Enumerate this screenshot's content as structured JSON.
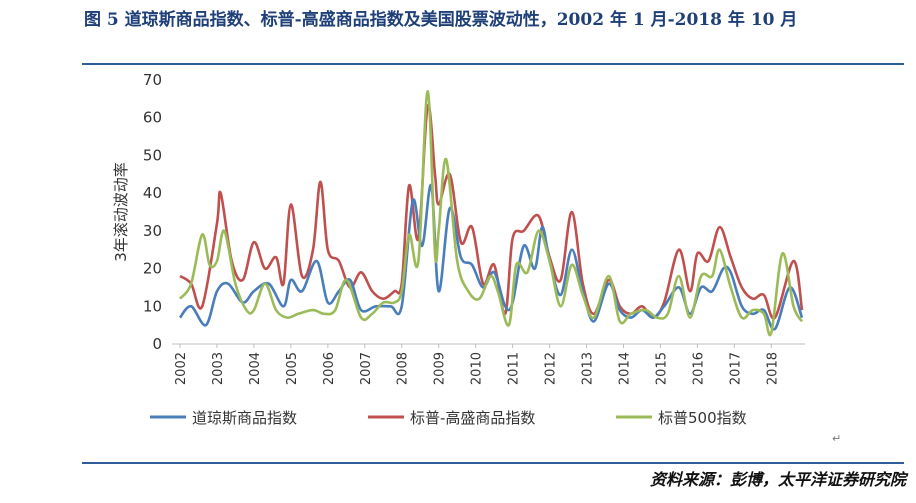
{
  "title": "图 5 道琼斯商品指数、标普-高盛商品指数及美国股票波动性，2002 年 1 月-2018 年 10 月",
  "source": "资料来源：彭博，太平洋证券研究院",
  "chart_data": {
    "type": "line",
    "ylabel": "3年滚动波动率",
    "xlabel": "",
    "ylim": [
      0,
      70
    ],
    "yticks": [
      0,
      10,
      20,
      30,
      40,
      50,
      60,
      70
    ],
    "xlim": [
      2002,
      2018.83
    ],
    "xticks": [
      "2002",
      "2003",
      "2004",
      "2005",
      "2006",
      "2007",
      "2008",
      "2009",
      "2010",
      "2011",
      "2012",
      "2013",
      "2014",
      "2015",
      "2016",
      "2017",
      "2018"
    ],
    "grid": false,
    "legend": "bottom",
    "series": [
      {
        "name": "道琼斯商品指数",
        "color": "#4a7ebb",
        "points": [
          [
            2002,
            7
          ],
          [
            2002.3,
            10
          ],
          [
            2002.7,
            5
          ],
          [
            2003.0,
            14
          ],
          [
            2003.3,
            16
          ],
          [
            2003.7,
            11
          ],
          [
            2004.0,
            14
          ],
          [
            2004.4,
            16
          ],
          [
            2004.8,
            10
          ],
          [
            2005.0,
            17
          ],
          [
            2005.3,
            14
          ],
          [
            2005.7,
            22
          ],
          [
            2006.0,
            11
          ],
          [
            2006.3,
            14
          ],
          [
            2006.6,
            17
          ],
          [
            2006.9,
            9
          ],
          [
            2007.3,
            10
          ],
          [
            2007.7,
            10
          ],
          [
            2008.0,
            10
          ],
          [
            2008.3,
            38
          ],
          [
            2008.55,
            26
          ],
          [
            2008.8,
            42
          ],
          [
            2009.0,
            14
          ],
          [
            2009.3,
            36
          ],
          [
            2009.6,
            23
          ],
          [
            2009.9,
            21
          ],
          [
            2010.2,
            15
          ],
          [
            2010.5,
            19
          ],
          [
            2010.8,
            10
          ],
          [
            2011.0,
            11
          ],
          [
            2011.3,
            26
          ],
          [
            2011.6,
            20
          ],
          [
            2011.8,
            31
          ],
          [
            2012.0,
            22
          ],
          [
            2012.3,
            13
          ],
          [
            2012.6,
            25
          ],
          [
            2012.9,
            14
          ],
          [
            2013.2,
            6
          ],
          [
            2013.6,
            16
          ],
          [
            2013.9,
            9
          ],
          [
            2014.2,
            7
          ],
          [
            2014.5,
            9
          ],
          [
            2014.8,
            7
          ],
          [
            2015.1,
            10
          ],
          [
            2015.5,
            15
          ],
          [
            2015.8,
            8
          ],
          [
            2016.1,
            15
          ],
          [
            2016.4,
            14
          ],
          [
            2016.7,
            20
          ],
          [
            2016.9,
            19
          ],
          [
            2017.2,
            10
          ],
          [
            2017.5,
            8
          ],
          [
            2017.8,
            9
          ],
          [
            2018.1,
            4
          ],
          [
            2018.5,
            15
          ],
          [
            2018.83,
            7
          ]
        ]
      },
      {
        "name": "标普-高盛商品指数",
        "color": "#c0504d",
        "points": [
          [
            2002,
            18
          ],
          [
            2002.3,
            16
          ],
          [
            2002.6,
            10
          ],
          [
            2003.0,
            32
          ],
          [
            2003.1,
            40
          ],
          [
            2003.4,
            22
          ],
          [
            2003.7,
            17
          ],
          [
            2004.0,
            27
          ],
          [
            2004.3,
            20
          ],
          [
            2004.6,
            23
          ],
          [
            2004.8,
            16
          ],
          [
            2005.0,
            37
          ],
          [
            2005.3,
            18
          ],
          [
            2005.6,
            25
          ],
          [
            2005.8,
            43
          ],
          [
            2006.0,
            25
          ],
          [
            2006.3,
            22
          ],
          [
            2006.6,
            15
          ],
          [
            2006.9,
            19
          ],
          [
            2007.2,
            14
          ],
          [
            2007.5,
            12
          ],
          [
            2007.8,
            14
          ],
          [
            2008.0,
            16
          ],
          [
            2008.2,
            42
          ],
          [
            2008.45,
            28
          ],
          [
            2008.7,
            63
          ],
          [
            2008.9,
            45
          ],
          [
            2009.0,
            37
          ],
          [
            2009.3,
            45
          ],
          [
            2009.6,
            27
          ],
          [
            2009.9,
            31
          ],
          [
            2010.2,
            16
          ],
          [
            2010.5,
            21
          ],
          [
            2010.8,
            8
          ],
          [
            2011.0,
            28
          ],
          [
            2011.3,
            30
          ],
          [
            2011.7,
            34
          ],
          [
            2012.0,
            23
          ],
          [
            2012.3,
            17
          ],
          [
            2012.6,
            35
          ],
          [
            2012.9,
            16
          ],
          [
            2013.2,
            8
          ],
          [
            2013.6,
            17
          ],
          [
            2013.9,
            10
          ],
          [
            2014.2,
            8
          ],
          [
            2014.5,
            10
          ],
          [
            2014.8,
            7
          ],
          [
            2015.1,
            11
          ],
          [
            2015.5,
            25
          ],
          [
            2015.8,
            14
          ],
          [
            2016.0,
            24
          ],
          [
            2016.3,
            22
          ],
          [
            2016.6,
            31
          ],
          [
            2016.9,
            23
          ],
          [
            2017.2,
            15
          ],
          [
            2017.5,
            12
          ],
          [
            2017.8,
            13
          ],
          [
            2018.1,
            7
          ],
          [
            2018.6,
            22
          ],
          [
            2018.83,
            9
          ]
        ]
      },
      {
        "name": "标普500指数",
        "color": "#9bbb59",
        "points": [
          [
            2002,
            12
          ],
          [
            2002.3,
            16
          ],
          [
            2002.6,
            29
          ],
          [
            2002.8,
            21
          ],
          [
            2003.0,
            22
          ],
          [
            2003.2,
            30
          ],
          [
            2003.5,
            16
          ],
          [
            2003.8,
            9
          ],
          [
            2004.0,
            9
          ],
          [
            2004.3,
            16
          ],
          [
            2004.6,
            9
          ],
          [
            2004.9,
            7
          ],
          [
            2005.2,
            8
          ],
          [
            2005.6,
            9
          ],
          [
            2005.9,
            8
          ],
          [
            2006.2,
            9
          ],
          [
            2006.5,
            17
          ],
          [
            2006.9,
            7
          ],
          [
            2007.2,
            8
          ],
          [
            2007.5,
            11
          ],
          [
            2007.8,
            11
          ],
          [
            2008.0,
            14
          ],
          [
            2008.2,
            29
          ],
          [
            2008.45,
            22
          ],
          [
            2008.7,
            67
          ],
          [
            2008.9,
            24
          ],
          [
            2009.0,
            30
          ],
          [
            2009.2,
            49
          ],
          [
            2009.5,
            22
          ],
          [
            2009.8,
            14
          ],
          [
            2010.1,
            12
          ],
          [
            2010.4,
            18
          ],
          [
            2010.6,
            14
          ],
          [
            2010.9,
            5
          ],
          [
            2011.1,
            21
          ],
          [
            2011.4,
            19
          ],
          [
            2011.7,
            30
          ],
          [
            2012.0,
            22
          ],
          [
            2012.3,
            10
          ],
          [
            2012.6,
            21
          ],
          [
            2012.9,
            13
          ],
          [
            2013.2,
            7
          ],
          [
            2013.6,
            18
          ],
          [
            2013.9,
            6
          ],
          [
            2014.2,
            8
          ],
          [
            2014.6,
            9
          ],
          [
            2014.9,
            7
          ],
          [
            2015.2,
            8
          ],
          [
            2015.5,
            18
          ],
          [
            2015.8,
            7
          ],
          [
            2016.1,
            18
          ],
          [
            2016.4,
            18
          ],
          [
            2016.6,
            25
          ],
          [
            2016.9,
            15
          ],
          [
            2017.2,
            7
          ],
          [
            2017.5,
            9
          ],
          [
            2017.8,
            8
          ],
          [
            2018.0,
            3
          ],
          [
            2018.3,
            24
          ],
          [
            2018.6,
            10
          ],
          [
            2018.83,
            6
          ]
        ]
      }
    ]
  }
}
